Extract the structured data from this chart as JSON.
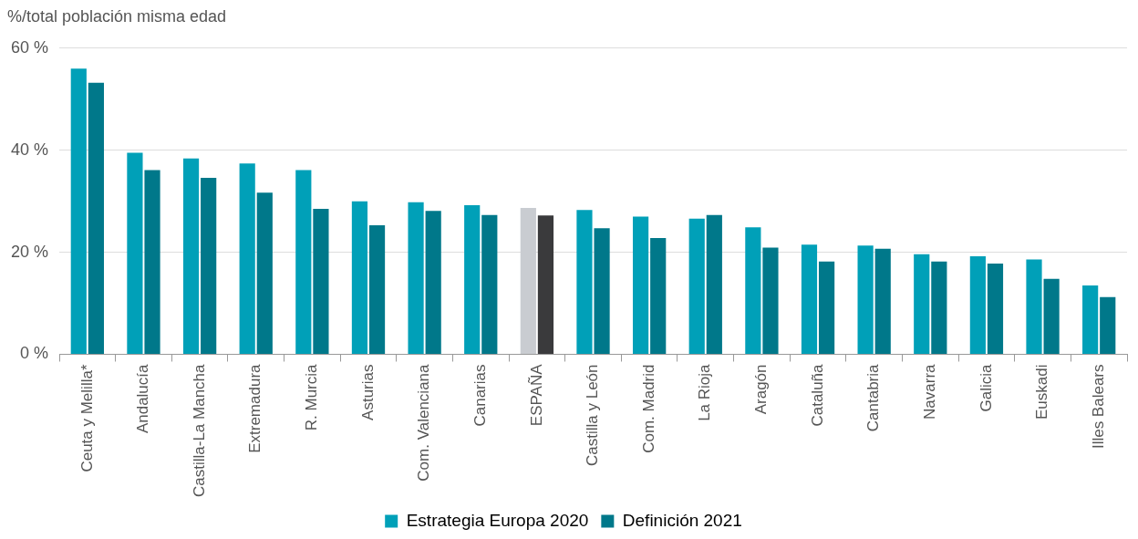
{
  "chart_data": {
    "type": "bar",
    "ylabel": "%/total población misma edad",
    "categories": [
      "Ceuta y Melilla*",
      "Andalucía",
      "Castilla-La Mancha",
      "Extremadura",
      "R. Murcia",
      "Asturias",
      "Com. Valenciana",
      "Canarias",
      "ESPAÑA",
      "Castilla y León",
      "Com. Madrid",
      "La Rioja",
      "Aragón",
      "Cataluña",
      "Cantabria",
      "Navarra",
      "Galicia",
      "Euskadi",
      "Illes Balears"
    ],
    "series": [
      {
        "name": "Estrategia Europa 2020",
        "color": "#00a0b8",
        "colors": [
          "#00a0b8",
          "#00a0b8",
          "#00a0b8",
          "#00a0b8",
          "#00a0b8",
          "#00a0b8",
          "#00a0b8",
          "#00a0b8",
          "#c9ccd1",
          "#00a0b8",
          "#00a0b8",
          "#00a0b8",
          "#00a0b8",
          "#00a0b8",
          "#00a0b8",
          "#00a0b8",
          "#00a0b8",
          "#00a0b8",
          "#00a0b8"
        ],
        "values": [
          56.0,
          39.5,
          38.4,
          37.4,
          36.1,
          30.0,
          29.8,
          29.2,
          28.7,
          28.3,
          27.0,
          26.6,
          24.9,
          21.5,
          21.3,
          19.6,
          19.2,
          18.6,
          13.5
        ]
      },
      {
        "name": "Definición 2021",
        "color": "#00788a",
        "colors": [
          "#00788a",
          "#00788a",
          "#00788a",
          "#00788a",
          "#00788a",
          "#00788a",
          "#00788a",
          "#00788a",
          "#3a3a3c",
          "#00788a",
          "#00788a",
          "#00788a",
          "#00788a",
          "#00788a",
          "#00788a",
          "#00788a",
          "#00788a",
          "#00788a",
          "#00788a"
        ],
        "values": [
          53.2,
          36.1,
          34.6,
          31.7,
          28.5,
          25.3,
          28.1,
          27.3,
          27.2,
          24.7,
          22.8,
          27.3,
          20.9,
          18.2,
          20.7,
          18.2,
          17.8,
          14.8,
          11.2
        ]
      }
    ],
    "ylim": [
      0,
      60
    ],
    "yticks": [
      {
        "value": 0,
        "label": "0 %"
      },
      {
        "value": 20,
        "label": "20 %"
      },
      {
        "value": 40,
        "label": "40 %"
      },
      {
        "value": 60,
        "label": "60 %"
      }
    ],
    "grid": "y",
    "legend": "bottom"
  }
}
